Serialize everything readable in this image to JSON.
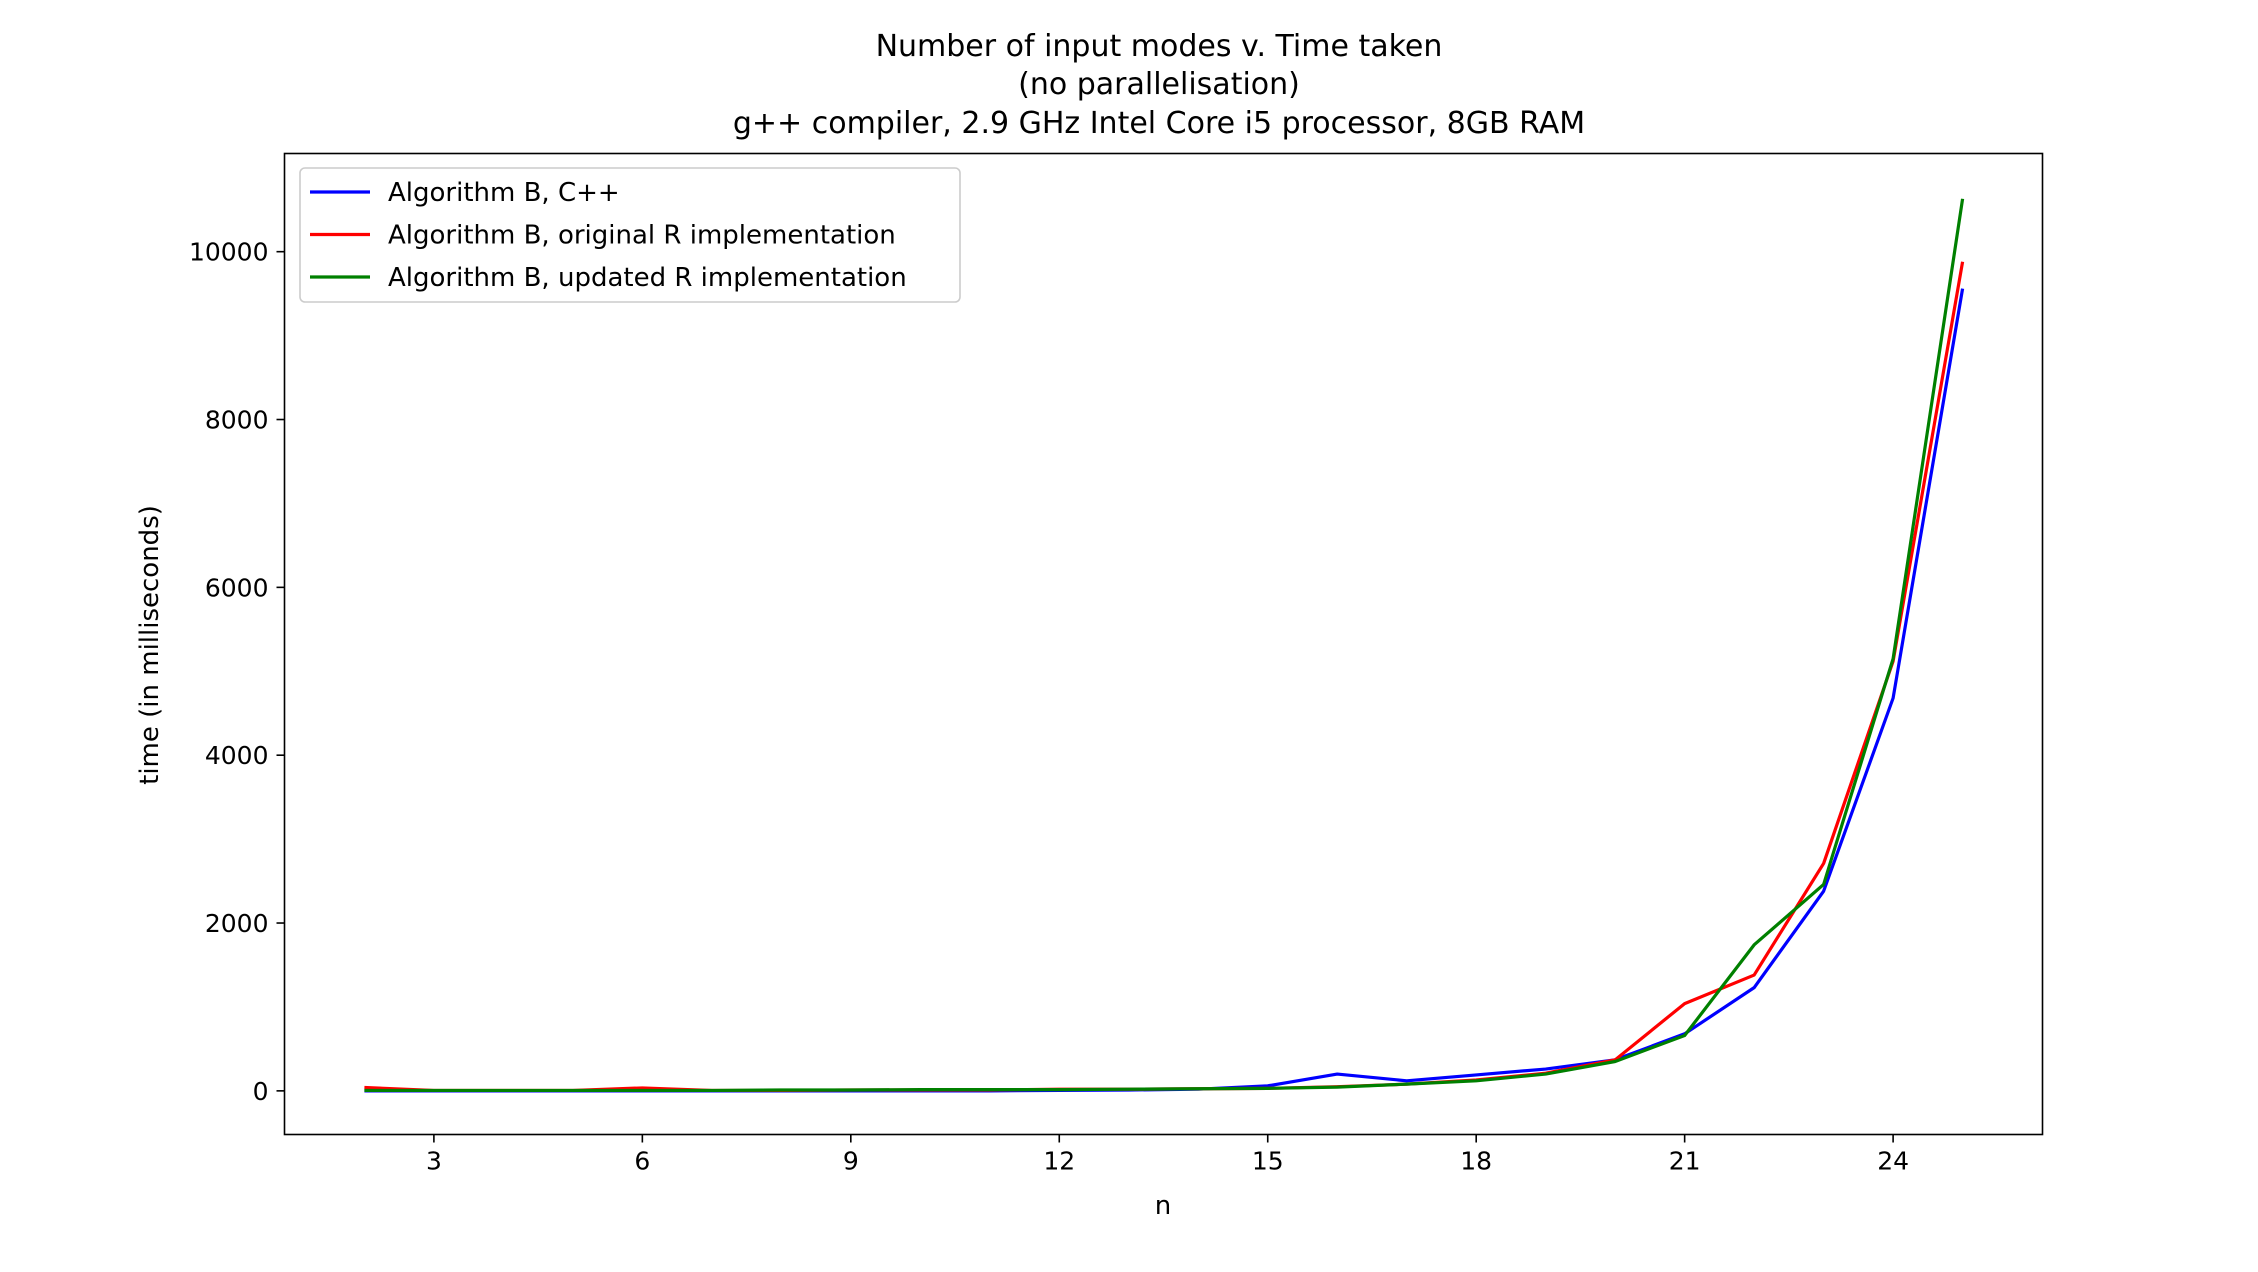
{
  "chart_data": {
    "type": "line",
    "title_lines": [
      "Number of input modes v. Time taken",
      "(no parallelisation)",
      "g++ compiler, 2.9 GHz Intel Core i5 processor, 8GB RAM"
    ],
    "xlabel": "n",
    "ylabel": "time (in milliseconds)",
    "xlim": [
      0.85,
      26.15
    ],
    "ylim": [
      -520,
      11170
    ],
    "xticks": [
      3,
      6,
      9,
      12,
      15,
      18,
      21,
      24
    ],
    "yticks": [
      0,
      2000,
      4000,
      6000,
      8000,
      10000
    ],
    "grid": false,
    "legend_position": "upper-left",
    "x": [
      2,
      3,
      4,
      5,
      6,
      7,
      8,
      9,
      10,
      11,
      12,
      13,
      14,
      15,
      16,
      17,
      18,
      19,
      20,
      21,
      22,
      23,
      24,
      25
    ],
    "series": [
      {
        "name": "Algorithm B, C++",
        "color": "#0000ff",
        "values": [
          0,
          0,
          0,
          0,
          0,
          0,
          0,
          0,
          0,
          0,
          5,
          10,
          20,
          60,
          200,
          120,
          190,
          260,
          370,
          680,
          1230,
          2380,
          4680,
          9560
        ]
      },
      {
        "name": "Algorithm B, original R implementation",
        "color": "#ff0000",
        "values": [
          40,
          5,
          5,
          5,
          35,
          5,
          5,
          10,
          10,
          10,
          20,
          20,
          25,
          30,
          50,
          80,
          130,
          210,
          370,
          1040,
          1380,
          2710,
          5120,
          9880
        ]
      },
      {
        "name": "Algorithm B, updated R implementation",
        "color": "#008000",
        "values": [
          5,
          5,
          5,
          5,
          5,
          5,
          10,
          10,
          15,
          15,
          15,
          20,
          25,
          30,
          45,
          80,
          120,
          200,
          350,
          660,
          1740,
          2460,
          5150,
          10630
        ]
      }
    ]
  }
}
